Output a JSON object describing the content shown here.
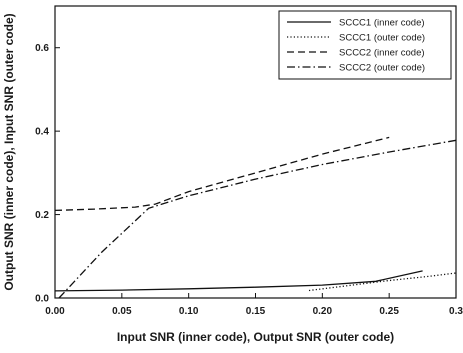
{
  "chart_data": {
    "type": "line",
    "title": "",
    "xlabel": "Input SNR (inner code), Output SNR (outer code)",
    "ylabel": "Output SNR (inner code), Input SNR (outer code)",
    "xlim": [
      0.0,
      0.3
    ],
    "ylim": [
      0.0,
      0.7
    ],
    "x_ticks": [
      "0.00",
      "0.05",
      "0.10",
      "0.15",
      "0.20",
      "0.25",
      "0.3"
    ],
    "x_tick_values": [
      0.0,
      0.05,
      0.1,
      0.15,
      0.2,
      0.25,
      0.3
    ],
    "y_ticks": [
      "0.0",
      "0.2",
      "0.4",
      "0.6"
    ],
    "y_tick_values": [
      0.0,
      0.2,
      0.4,
      0.6
    ],
    "grid": false,
    "legend_position": "top-right",
    "series": [
      {
        "name": "SCCC1 (inner code)",
        "dash": "solid",
        "color": "#111111",
        "points": [
          [
            0.0,
            0.017
          ],
          [
            0.05,
            0.019
          ],
          [
            0.1,
            0.022
          ],
          [
            0.15,
            0.026
          ],
          [
            0.2,
            0.031
          ],
          [
            0.24,
            0.04
          ],
          [
            0.275,
            0.065
          ]
        ]
      },
      {
        "name": "SCCC1 (outer code)",
        "dash": "dotted",
        "color": "#111111",
        "points": [
          [
            0.19,
            0.018
          ],
          [
            0.22,
            0.03
          ],
          [
            0.25,
            0.042
          ],
          [
            0.28,
            0.052
          ],
          [
            0.3,
            0.06
          ]
        ]
      },
      {
        "name": "SCCC2 (inner code)",
        "dash": "dashed",
        "color": "#111111",
        "points": [
          [
            0.0,
            0.21
          ],
          [
            0.03,
            0.213
          ],
          [
            0.06,
            0.218
          ],
          [
            0.075,
            0.225
          ],
          [
            0.1,
            0.255
          ],
          [
            0.15,
            0.3
          ],
          [
            0.2,
            0.345
          ],
          [
            0.25,
            0.385
          ]
        ]
      },
      {
        "name": "SCCC2 (outer code)",
        "dash": "dashdot",
        "color": "#111111",
        "points": [
          [
            0.003,
            0.0
          ],
          [
            0.035,
            0.11
          ],
          [
            0.07,
            0.215
          ],
          [
            0.1,
            0.245
          ],
          [
            0.15,
            0.285
          ],
          [
            0.2,
            0.32
          ],
          [
            0.25,
            0.35
          ],
          [
            0.3,
            0.378
          ]
        ]
      }
    ]
  }
}
